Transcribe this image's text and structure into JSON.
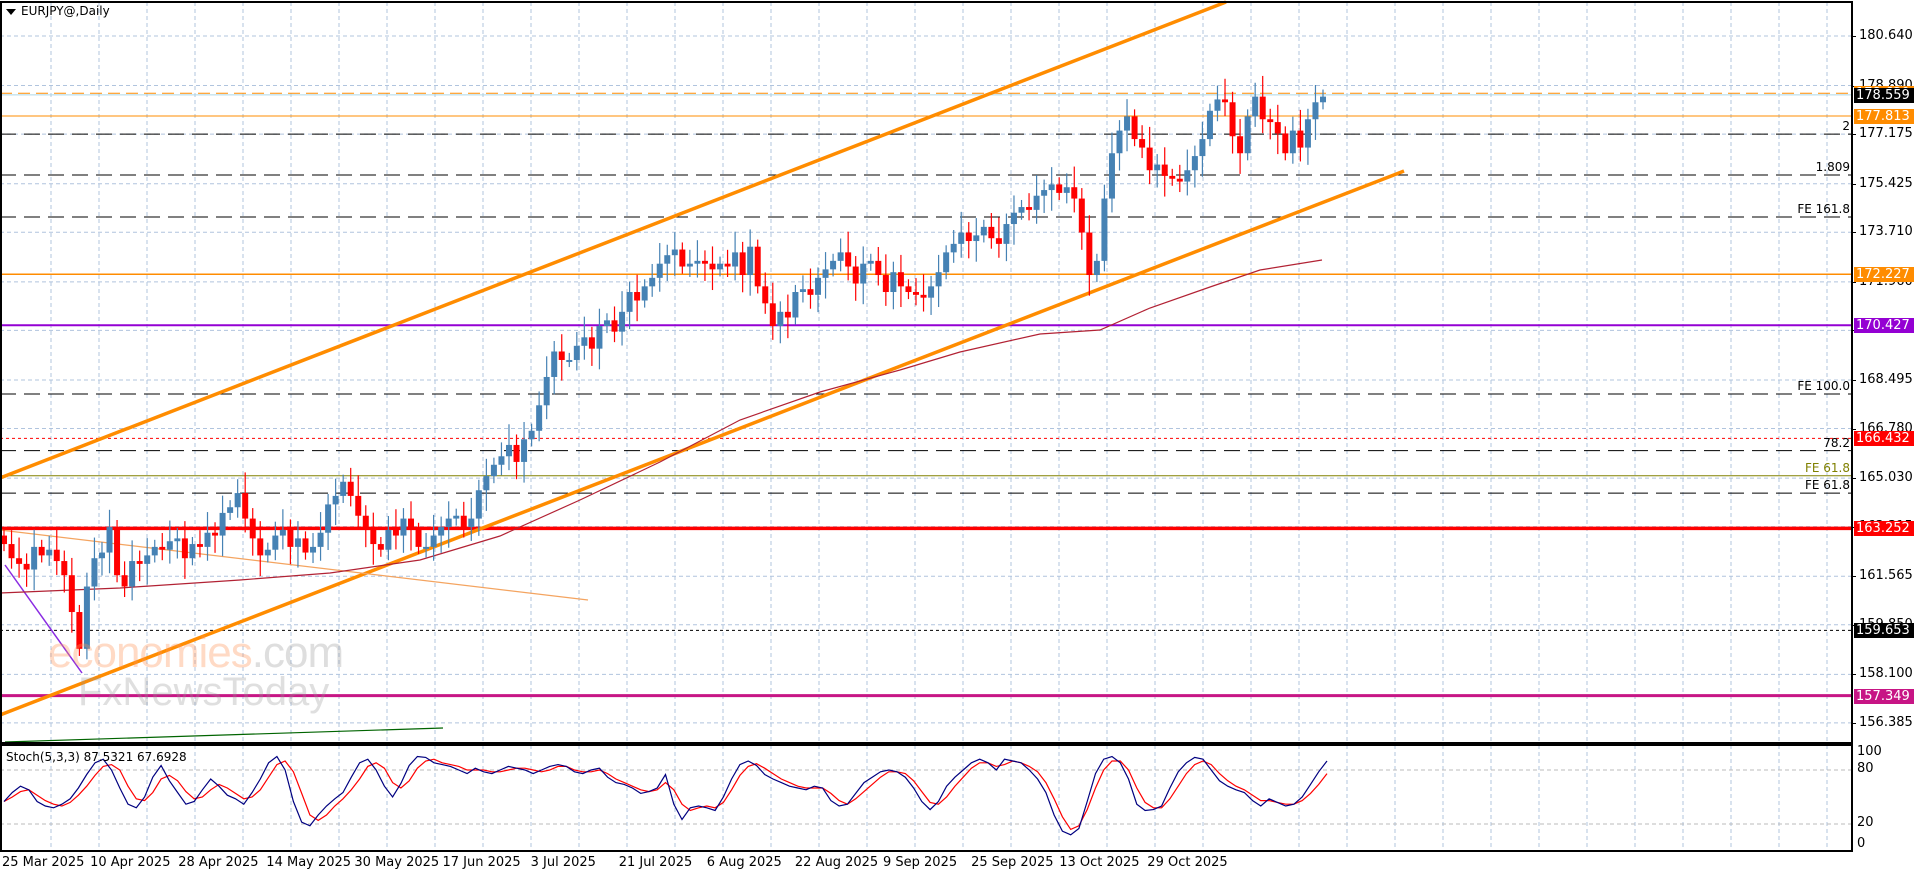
{
  "header": {
    "symbol_timeframe": "EURJPY@,Daily"
  },
  "indicator": {
    "label": "Stoch(5,3,3) 87.5321 67.6928"
  },
  "watermark": {
    "part1": "economies",
    "part2": ".com",
    "line2": "FxNewsToday"
  },
  "colors": {
    "bull": "#4682B4",
    "bear": "#FF0000",
    "channel": "#FF8C00",
    "ma": "#B22234",
    "grid": "#B0C4DE",
    "stoch_main": "#000080",
    "stoch_signal": "#FF0000"
  },
  "price_axis": {
    "ticks": [
      "180.640",
      "178.890",
      "177.175",
      "175.425",
      "173.710",
      "171.960",
      "170.245",
      "168.495",
      "166.780",
      "165.030",
      "163.315",
      "161.565",
      "159.850",
      "158.100",
      "156.385"
    ],
    "tags": [
      {
        "value": "178.620",
        "color": "#FF8C00"
      },
      {
        "value": "178.559",
        "color": "#000000"
      },
      {
        "value": "177.813",
        "color": "#FF8C00"
      },
      {
        "value": "172.227",
        "color": "#FF8C00"
      },
      {
        "value": "170.427",
        "color": "#9400D3"
      },
      {
        "value": "166.432",
        "color": "#FF0000"
      },
      {
        "value": "163.252",
        "color": "#FF0000"
      },
      {
        "value": "159.653",
        "color": "#000000"
      },
      {
        "value": "157.349",
        "color": "#C71585"
      }
    ]
  },
  "stoch_axis": {
    "ticks": [
      "100",
      "80",
      "20",
      "0"
    ]
  },
  "levels": [
    {
      "label": "2",
      "price": 177.175
    },
    {
      "label": "1.809",
      "price": 175.73
    },
    {
      "label": "FE 161.8",
      "price": 174.25
    },
    {
      "label": "FE 100.0",
      "price": 168.0
    },
    {
      "label": "78.2",
      "price": 166.0
    },
    {
      "label": "FE 61.8",
      "price": 165.11
    },
    {
      "label": "FE 61.8",
      "price": 164.5
    }
  ],
  "date_axis": {
    "labels": [
      "25 Mar 2025",
      "10 Apr 2025",
      "28 Apr 2025",
      "14 May 2025",
      "30 May 2025",
      "17 Jun 2025",
      "3 Jul 2025",
      "21 Jul 2025",
      "6 Aug 2025",
      "22 Aug 2025",
      "9 Sep 2025",
      "25 Sep 2025",
      "13 Oct 2025",
      "29 Oct 2025"
    ]
  },
  "chart_data": {
    "type": "candlestick",
    "title": "EURJPY@,Daily",
    "xlabel": "",
    "ylabel": "",
    "ylim": [
      155.8,
      181.9
    ],
    "grid": true,
    "x": [
      "25 Mar 2025",
      "10 Apr 2025",
      "28 Apr 2025",
      "14 May 2025",
      "30 May 2025",
      "17 Jun 2025",
      "3 Jul 2025",
      "21 Jul 2025",
      "6 Aug 2025",
      "22 Aug 2025",
      "9 Sep 2025",
      "25 Sep 2025",
      "13 Oct 2025",
      "29 Oct 2025"
    ],
    "closes": [
      162.7,
      162.2,
      162.0,
      161.8,
      162.6,
      162.3,
      162.5,
      162.1,
      161.6,
      160.3,
      159.0,
      161.2,
      162.2,
      162.4,
      163.3,
      161.6,
      161.2,
      162.1,
      162.0,
      162.3,
      162.6,
      162.5,
      162.8,
      162.9,
      162.2,
      162.7,
      162.6,
      163.1,
      163.0,
      163.8,
      164.0,
      164.5,
      163.6,
      162.9,
      162.3,
      162.5,
      163.0,
      163.2,
      162.6,
      162.9,
      162.4,
      162.6,
      163.1,
      164.1,
      164.4,
      164.9,
      164.4,
      163.7,
      163.2,
      162.7,
      162.5,
      163.2,
      163.0,
      163.6,
      163.2,
      162.6,
      162.6,
      163.0,
      163.3,
      163.6,
      163.7,
      163.3,
      163.6,
      164.6,
      165.1,
      165.5,
      165.8,
      166.2,
      165.6,
      166.4,
      166.7,
      167.6,
      168.6,
      169.5,
      169.2,
      169.2,
      169.7,
      170.0,
      169.6,
      170.4,
      170.6,
      170.2,
      170.9,
      171.6,
      171.3,
      171.8,
      172.1,
      172.6,
      172.9,
      173.1,
      172.5,
      172.6,
      172.7,
      172.6,
      172.4,
      172.6,
      172.5,
      173.0,
      172.2,
      173.2,
      171.8,
      171.2,
      170.4,
      170.9,
      170.7,
      171.6,
      171.7,
      171.5,
      172.1,
      172.4,
      172.7,
      173.0,
      172.5,
      171.9,
      172.6,
      172.7,
      172.2,
      171.6,
      172.3,
      171.8,
      171.6,
      171.5,
      171.4,
      171.8,
      172.3,
      173.0,
      173.3,
      173.7,
      173.4,
      173.6,
      173.9,
      173.5,
      173.3,
      174.0,
      174.4,
      174.6,
      174.5,
      175.0,
      175.2,
      175.4,
      175.1,
      175.3,
      174.9,
      173.7,
      172.2,
      172.7,
      174.9,
      176.5,
      177.3,
      177.8,
      177.0,
      176.7,
      175.9,
      176.1,
      175.7,
      175.6,
      175.5,
      175.9,
      176.4,
      177.0,
      178.0,
      178.4,
      178.3,
      177.1,
      176.5,
      177.8,
      178.5,
      177.7,
      177.6,
      177.2,
      176.5,
      177.3,
      176.7,
      177.7,
      178.3,
      178.5
    ]
  },
  "stoch_data": {
    "main": [
      45,
      55,
      62,
      58,
      45,
      40,
      38,
      42,
      48,
      60,
      75,
      88,
      92,
      80,
      60,
      42,
      38,
      50,
      72,
      85,
      68,
      55,
      42,
      45,
      58,
      70,
      62,
      52,
      48,
      42,
      55,
      70,
      88,
      95,
      80,
      45,
      22,
      18,
      30,
      40,
      48,
      55,
      72,
      88,
      92,
      80,
      62,
      50,
      65,
      85,
      95,
      94,
      88,
      86,
      84,
      80,
      76,
      82,
      78,
      76,
      80,
      84,
      82,
      80,
      76,
      80,
      84,
      86,
      84,
      78,
      76,
      80,
      82,
      72,
      66,
      64,
      60,
      54,
      56,
      60,
      75,
      42,
      25,
      38,
      40,
      38,
      35,
      50,
      70,
      86,
      90,
      85,
      75,
      70,
      66,
      62,
      60,
      58,
      62,
      60,
      46,
      40,
      42,
      54,
      66,
      72,
      78,
      80,
      78,
      72,
      60,
      45,
      36,
      45,
      62,
      72,
      80,
      88,
      92,
      88,
      80,
      92,
      90,
      88,
      80,
      70,
      55,
      30,
      12,
      8,
      15,
      45,
      76,
      92,
      95,
      88,
      70,
      42,
      35,
      36,
      40,
      60,
      78,
      88,
      94,
      92,
      80,
      68,
      62,
      58,
      55,
      46,
      40,
      48,
      44,
      40,
      42,
      50,
      64,
      78,
      90
    ],
    "signal": [
      45,
      50,
      56,
      58,
      52,
      46,
      42,
      40,
      44,
      52,
      62,
      74,
      84,
      86,
      80,
      62,
      48,
      46,
      55,
      70,
      74,
      68,
      56,
      48,
      50,
      58,
      64,
      60,
      54,
      48,
      50,
      58,
      72,
      86,
      90,
      78,
      54,
      30,
      24,
      30,
      40,
      48,
      58,
      70,
      84,
      88,
      82,
      66,
      60,
      68,
      82,
      90,
      92,
      88,
      86,
      84,
      80,
      80,
      80,
      78,
      78,
      80,
      82,
      82,
      80,
      78,
      80,
      84,
      84,
      80,
      78,
      78,
      80,
      76,
      70,
      66,
      62,
      58,
      56,
      58,
      66,
      58,
      42,
      35,
      38,
      40,
      38,
      44,
      58,
      74,
      84,
      87,
      82,
      76,
      70,
      66,
      62,
      60,
      60,
      60,
      54,
      46,
      42,
      48,
      56,
      64,
      72,
      78,
      78,
      76,
      68,
      56,
      44,
      42,
      50,
      62,
      72,
      82,
      88,
      88,
      84,
      86,
      90,
      88,
      84,
      78,
      66,
      48,
      28,
      14,
      18,
      36,
      60,
      80,
      90,
      90,
      80,
      60,
      44,
      38,
      38,
      48,
      62,
      76,
      86,
      90,
      86,
      76,
      68,
      62,
      58,
      52,
      46,
      46,
      44,
      42,
      42,
      46,
      54,
      64,
      76
    ]
  }
}
